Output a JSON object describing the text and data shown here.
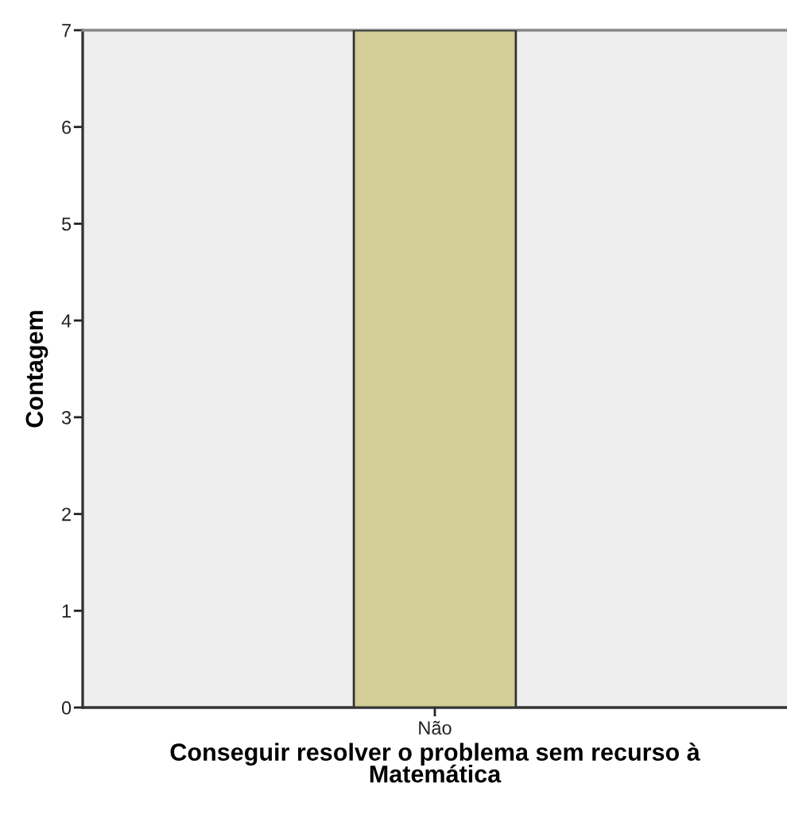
{
  "chart_data": {
    "type": "bar",
    "xlabel": "Conseguir resolver o problema sem recurso à\nMatemática",
    "ylabel": "Contagem",
    "categories": [
      "Não"
    ],
    "values": [
      7
    ],
    "color": "#d3ce97",
    "ylim": [
      0,
      7
    ],
    "yticks": [
      0,
      1,
      2,
      3,
      4,
      5,
      6,
      7
    ],
    "grid": false
  }
}
